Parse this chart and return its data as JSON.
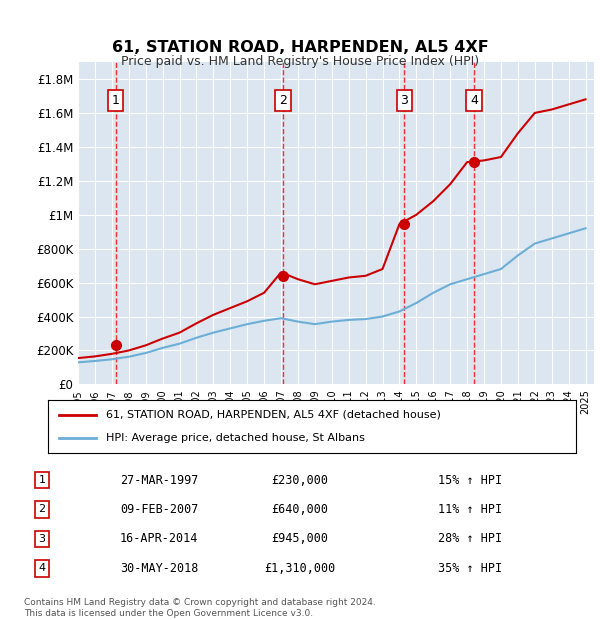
{
  "title": "61, STATION ROAD, HARPENDEN, AL5 4XF",
  "subtitle": "Price paid vs. HM Land Registry's House Price Index (HPI)",
  "xlabel": "",
  "ylabel": "",
  "background_color": "#dce6f1",
  "plot_bg_color": "#dce6f1",
  "legend_label_red": "61, STATION ROAD, HARPENDEN, AL5 4XF (detached house)",
  "legend_label_blue": "HPI: Average price, detached house, St Albans",
  "footer": "Contains HM Land Registry data © Crown copyright and database right 2024.\nThis data is licensed under the Open Government Licence v3.0.",
  "transactions": [
    {
      "num": 1,
      "date": "27-MAR-1997",
      "price": 230000,
      "pct": "15%",
      "year": 1997.23
    },
    {
      "num": 2,
      "date": "09-FEB-2007",
      "price": 640000,
      "pct": "11%",
      "year": 2007.11
    },
    {
      "num": 3,
      "date": "16-APR-2014",
      "price": 945000,
      "pct": "28%",
      "year": 2014.29
    },
    {
      "num": 4,
      "date": "30-MAY-2018",
      "price": 1310000,
      "pct": "35%",
      "year": 2018.41
    }
  ],
  "ylim": [
    0,
    1900000
  ],
  "xlim_start": 1995.0,
  "xlim_end": 2025.5,
  "hpi_years": [
    1995,
    1996,
    1997,
    1998,
    1999,
    2000,
    2001,
    2002,
    2003,
    2004,
    2005,
    2006,
    2007,
    2008,
    2009,
    2010,
    2011,
    2012,
    2013,
    2014,
    2015,
    2016,
    2017,
    2018,
    2019,
    2020,
    2021,
    2022,
    2023,
    2024,
    2025
  ],
  "hpi_values": [
    130000,
    138000,
    148000,
    163000,
    185000,
    215000,
    240000,
    275000,
    305000,
    330000,
    355000,
    375000,
    390000,
    370000,
    355000,
    370000,
    380000,
    385000,
    400000,
    430000,
    480000,
    540000,
    590000,
    620000,
    650000,
    680000,
    760000,
    830000,
    860000,
    890000,
    920000
  ],
  "red_years": [
    1995,
    1996,
    1997,
    1998,
    1999,
    2000,
    2001,
    2002,
    2003,
    2004,
    2005,
    2006,
    2007,
    2008,
    2009,
    2010,
    2011,
    2012,
    2013,
    2014,
    2015,
    2016,
    2017,
    2018,
    2019,
    2020,
    2021,
    2022,
    2023,
    2024,
    2025
  ],
  "red_values": [
    155000,
    165000,
    180000,
    200000,
    230000,
    270000,
    305000,
    360000,
    410000,
    450000,
    490000,
    540000,
    660000,
    620000,
    590000,
    610000,
    630000,
    640000,
    680000,
    945000,
    1000000,
    1080000,
    1180000,
    1310000,
    1320000,
    1340000,
    1480000,
    1600000,
    1620000,
    1650000,
    1680000
  ],
  "yticks": [
    0,
    200000,
    400000,
    600000,
    800000,
    1000000,
    1200000,
    1400000,
    1600000,
    1800000
  ],
  "ytick_labels": [
    "£0",
    "£200K",
    "£400K",
    "£600K",
    "£800K",
    "£1M",
    "£1.2M",
    "£1.4M",
    "£1.6M",
    "£1.8M"
  ]
}
